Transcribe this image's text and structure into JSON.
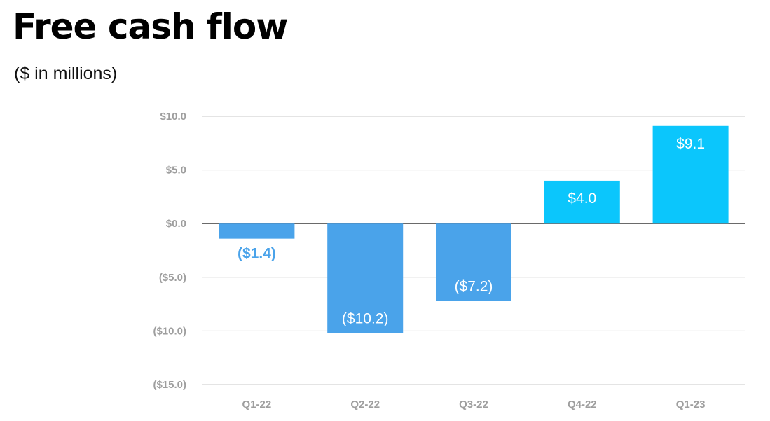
{
  "header": {
    "title": "Free cash flow",
    "subtitle": "($ in millions)"
  },
  "colors": {
    "negative_bar": "#4aa3ea",
    "positive_bar": "#0bc6fc",
    "grid": "#c8c8c8",
    "zero_line": "#555555",
    "tick_text": "#9e9e9e",
    "label_inside": "#ffffff",
    "label_outside": "#4aa3ea"
  },
  "chart_data": {
    "type": "bar",
    "categories": [
      "Q1-22",
      "Q2-22",
      "Q3-22",
      "Q4-22",
      "Q1-23"
    ],
    "values": [
      -1.4,
      -10.2,
      -7.2,
      4.0,
      9.1
    ],
    "data_labels": [
      "($1.4)",
      "($10.2)",
      "($7.2)",
      "$4.0",
      "$9.1"
    ],
    "y_ticks": [
      10,
      5,
      0,
      -5,
      -10,
      -15
    ],
    "y_tick_labels": [
      "$10.0",
      "$5.0",
      "$0.0",
      "($5.0)",
      "($10.0)",
      "($15.0)"
    ],
    "ylim": [
      -15,
      10
    ],
    "grid": true,
    "title": "Free cash flow",
    "subtitle": "($ in millions)"
  }
}
